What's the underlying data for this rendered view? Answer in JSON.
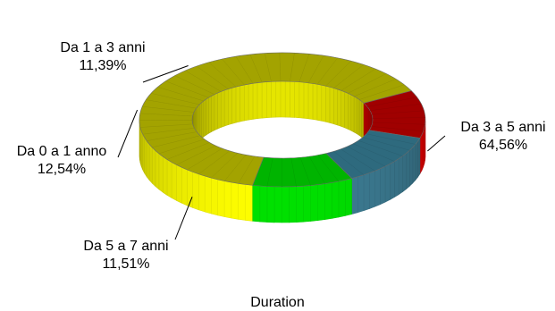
{
  "chart_data": {
    "type": "pie",
    "style": "3d-donut",
    "xlabel": "Duration",
    "slices": [
      {
        "name": "Da 3 a 5 anni",
        "value": 64.56,
        "label": "64,56%",
        "color": "#ffff00",
        "dark": "#c8c800",
        "top": "#a3a300"
      },
      {
        "name": "Da 5 a 7 anni",
        "value": 11.51,
        "label": "11,51%",
        "color": "#ff0000",
        "dark": "#b40000",
        "top": "#a00000"
      },
      {
        "name": "Da 0 a 1 anno",
        "value": 12.54,
        "label": "12,54%",
        "color": "#3d7d94",
        "dark": "#234e5e",
        "top": "#2e6a7e"
      },
      {
        "name": "Da 1 a 3 anni",
        "value": 11.39,
        "label": "11,39%",
        "color": "#00e000",
        "dark": "#009a00",
        "top": "#00b400"
      }
    ]
  }
}
